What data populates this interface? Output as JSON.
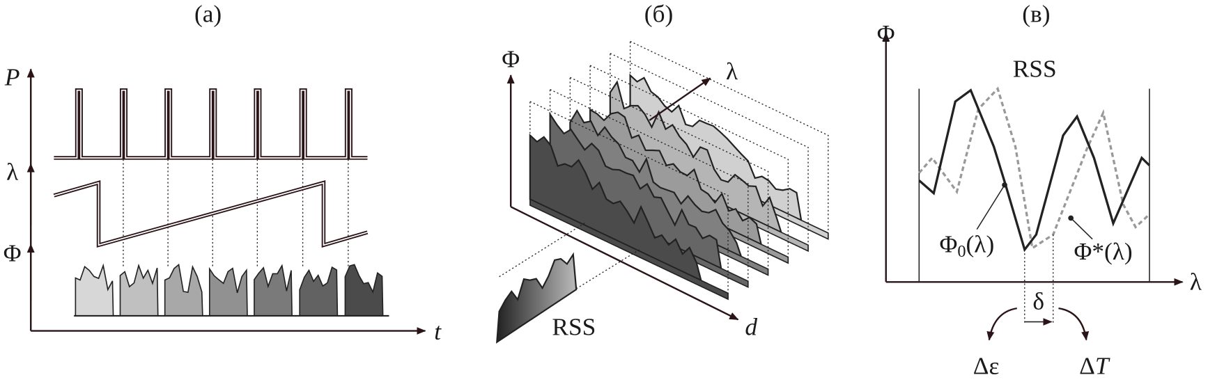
{
  "panel_a": {
    "title": "(а)",
    "y_labels": [
      "P",
      "λ",
      "Φ"
    ],
    "x_label": "t"
  },
  "panel_b": {
    "title": "(б)",
    "y_label": "Φ",
    "depth_label": "λ",
    "x_label": "d",
    "inset_label": "RSS"
  },
  "panel_c": {
    "title": "(в)",
    "y_label": "Φ",
    "x_label": "λ",
    "curve_label": "RSS",
    "curve1": {
      "symbol": "Φ",
      "subscript": "0",
      "argument": "(λ)"
    },
    "curve2": "Φ*(λ)",
    "shift": "δ",
    "effect_left": "Δε",
    "effect_right": {
      "prefix": "Δ",
      "symbol": "T"
    }
  }
}
